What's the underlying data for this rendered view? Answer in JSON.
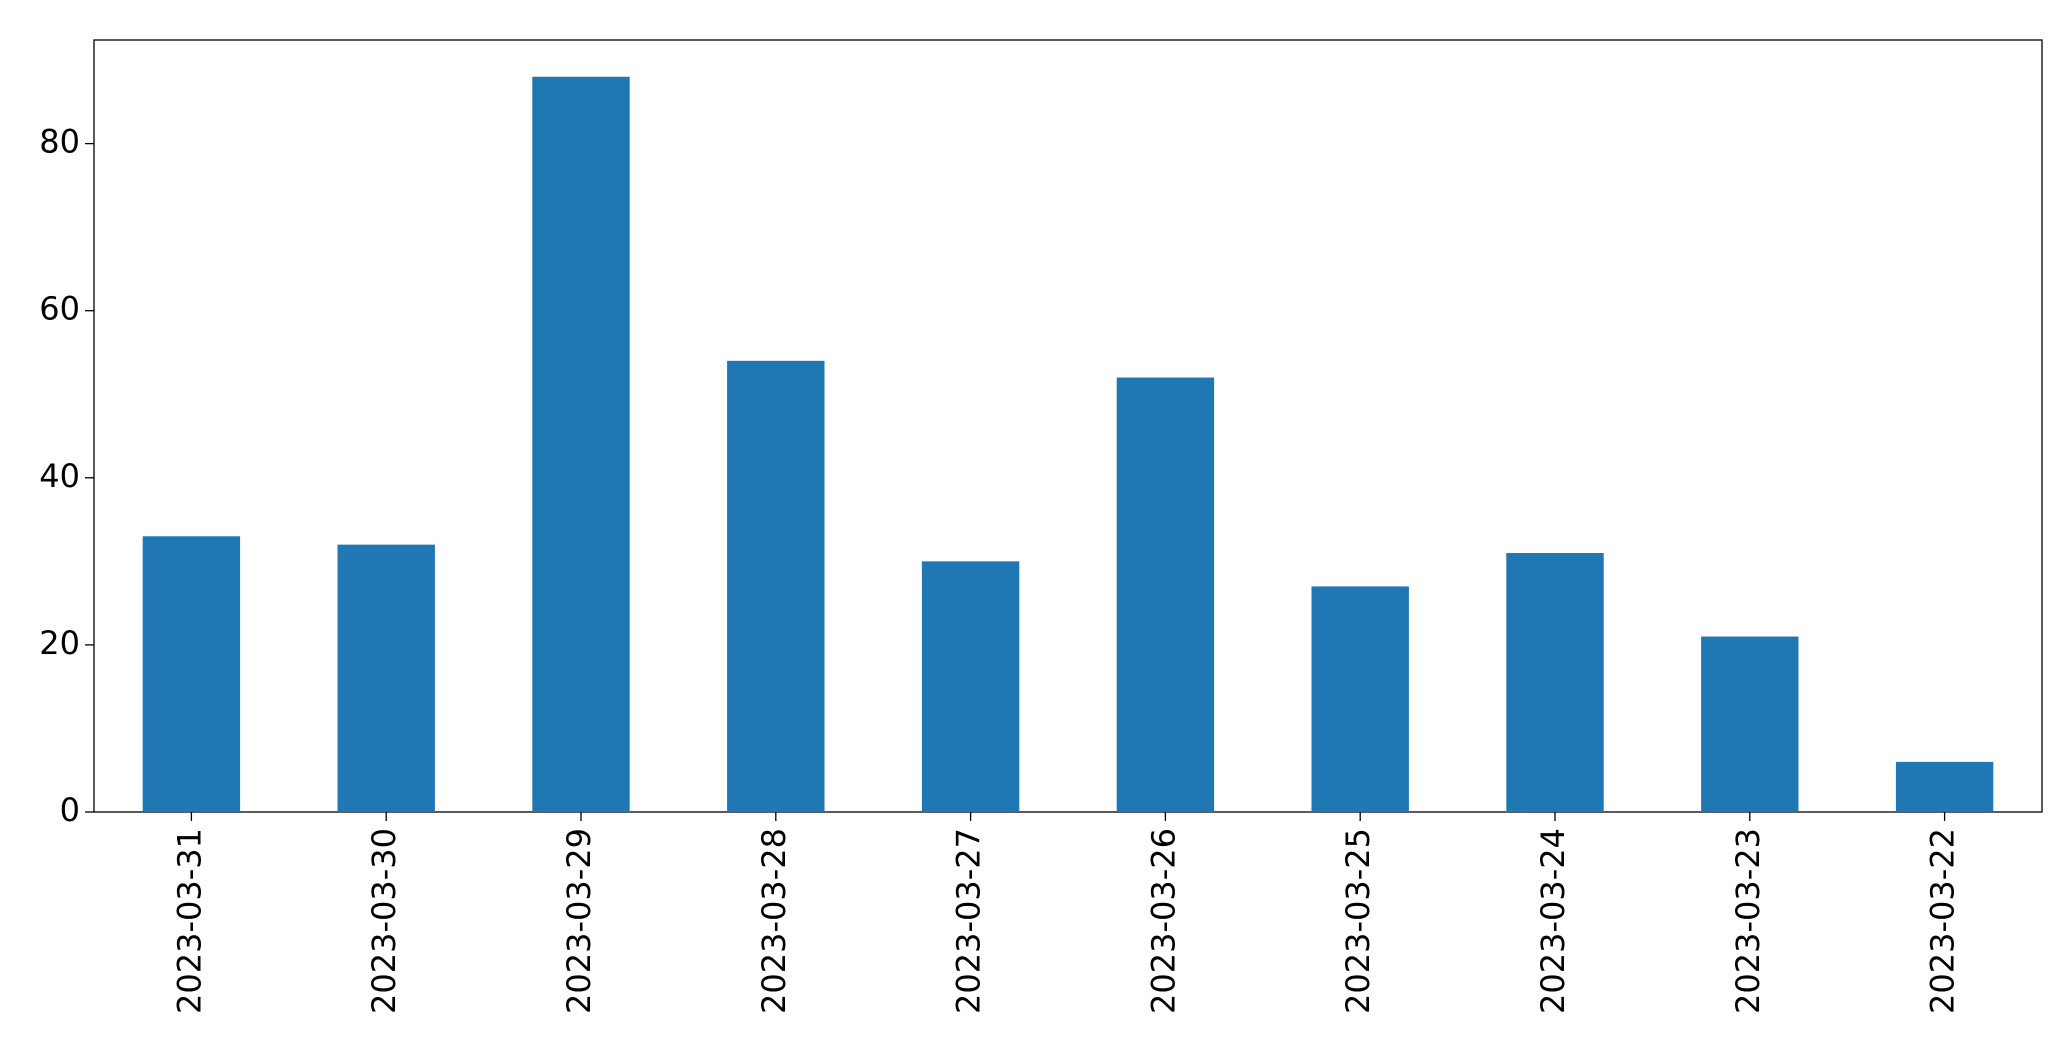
{
  "chart_data": {
    "type": "bar",
    "categories": [
      "2023-03-31",
      "2023-03-30",
      "2023-03-29",
      "2023-03-28",
      "2023-03-27",
      "2023-03-26",
      "2023-03-25",
      "2023-03-24",
      "2023-03-23",
      "2023-03-22"
    ],
    "values": [
      33,
      32,
      88,
      54,
      30,
      52,
      27,
      31,
      21,
      6
    ],
    "color": "#1f77b4",
    "ylim": [
      0,
      92.4
    ],
    "yticks": [
      0,
      20,
      40,
      60,
      80
    ],
    "grid": false
  }
}
